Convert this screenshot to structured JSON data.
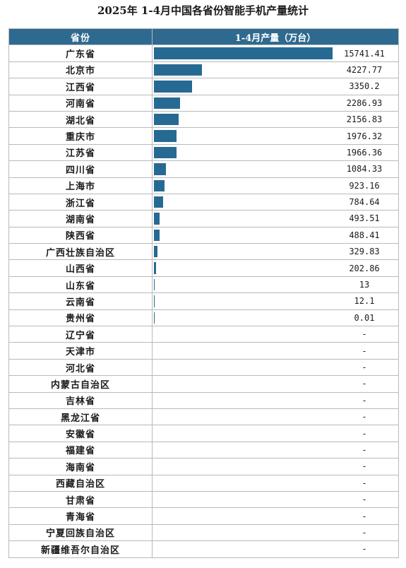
{
  "title": "2025年 1-4月中国各省份智能手机产量统计",
  "chart_data": {
    "type": "bar",
    "title": "2025年 1-4月中国各省份智能手机产量统计",
    "columns": [
      "省份",
      "1-4月产量（万台）"
    ],
    "colors": {
      "bar": "#266a93",
      "header_bg": "#2e6a8f"
    },
    "rows": [
      {
        "province": "广东省",
        "value": 15741.41,
        "label": "15741.41"
      },
      {
        "province": "北京市",
        "value": 4227.77,
        "label": "4227.77"
      },
      {
        "province": "江西省",
        "value": 3350.2,
        "label": "3350.2"
      },
      {
        "province": "河南省",
        "value": 2286.93,
        "label": "2286.93"
      },
      {
        "province": "湖北省",
        "value": 2156.83,
        "label": "2156.83"
      },
      {
        "province": "重庆市",
        "value": 1976.32,
        "label": "1976.32"
      },
      {
        "province": "江苏省",
        "value": 1966.36,
        "label": "1966.36"
      },
      {
        "province": "四川省",
        "value": 1084.33,
        "label": "1084.33"
      },
      {
        "province": "上海市",
        "value": 923.16,
        "label": "923.16"
      },
      {
        "province": "浙江省",
        "value": 784.64,
        "label": "784.64"
      },
      {
        "province": "湖南省",
        "value": 493.51,
        "label": "493.51"
      },
      {
        "province": "陕西省",
        "value": 488.41,
        "label": "488.41"
      },
      {
        "province": "广西壮族自治区",
        "value": 329.83,
        "label": "329.83"
      },
      {
        "province": "山西省",
        "value": 202.86,
        "label": "202.86"
      },
      {
        "province": "山东省",
        "value": 13,
        "label": "13"
      },
      {
        "province": "云南省",
        "value": 12.1,
        "label": "12.1"
      },
      {
        "province": "贵州省",
        "value": 0.01,
        "label": "0.01"
      },
      {
        "province": "辽宁省",
        "value": null,
        "label": "-"
      },
      {
        "province": "天津市",
        "value": null,
        "label": "-"
      },
      {
        "province": "河北省",
        "value": null,
        "label": "-"
      },
      {
        "province": "内蒙古自治区",
        "value": null,
        "label": "-"
      },
      {
        "province": "吉林省",
        "value": null,
        "label": "-"
      },
      {
        "province": "黑龙江省",
        "value": null,
        "label": "-"
      },
      {
        "province": "安徽省",
        "value": null,
        "label": "-"
      },
      {
        "province": "福建省",
        "value": null,
        "label": "-"
      },
      {
        "province": "海南省",
        "value": null,
        "label": "-"
      },
      {
        "province": "西藏自治区",
        "value": null,
        "label": "-"
      },
      {
        "province": "甘肃省",
        "value": null,
        "label": "-"
      },
      {
        "province": "青海省",
        "value": null,
        "label": "-"
      },
      {
        "province": "宁夏回族自治区",
        "value": null,
        "label": "-"
      },
      {
        "province": "新疆维吾尔自治区",
        "value": null,
        "label": "-"
      }
    ]
  }
}
